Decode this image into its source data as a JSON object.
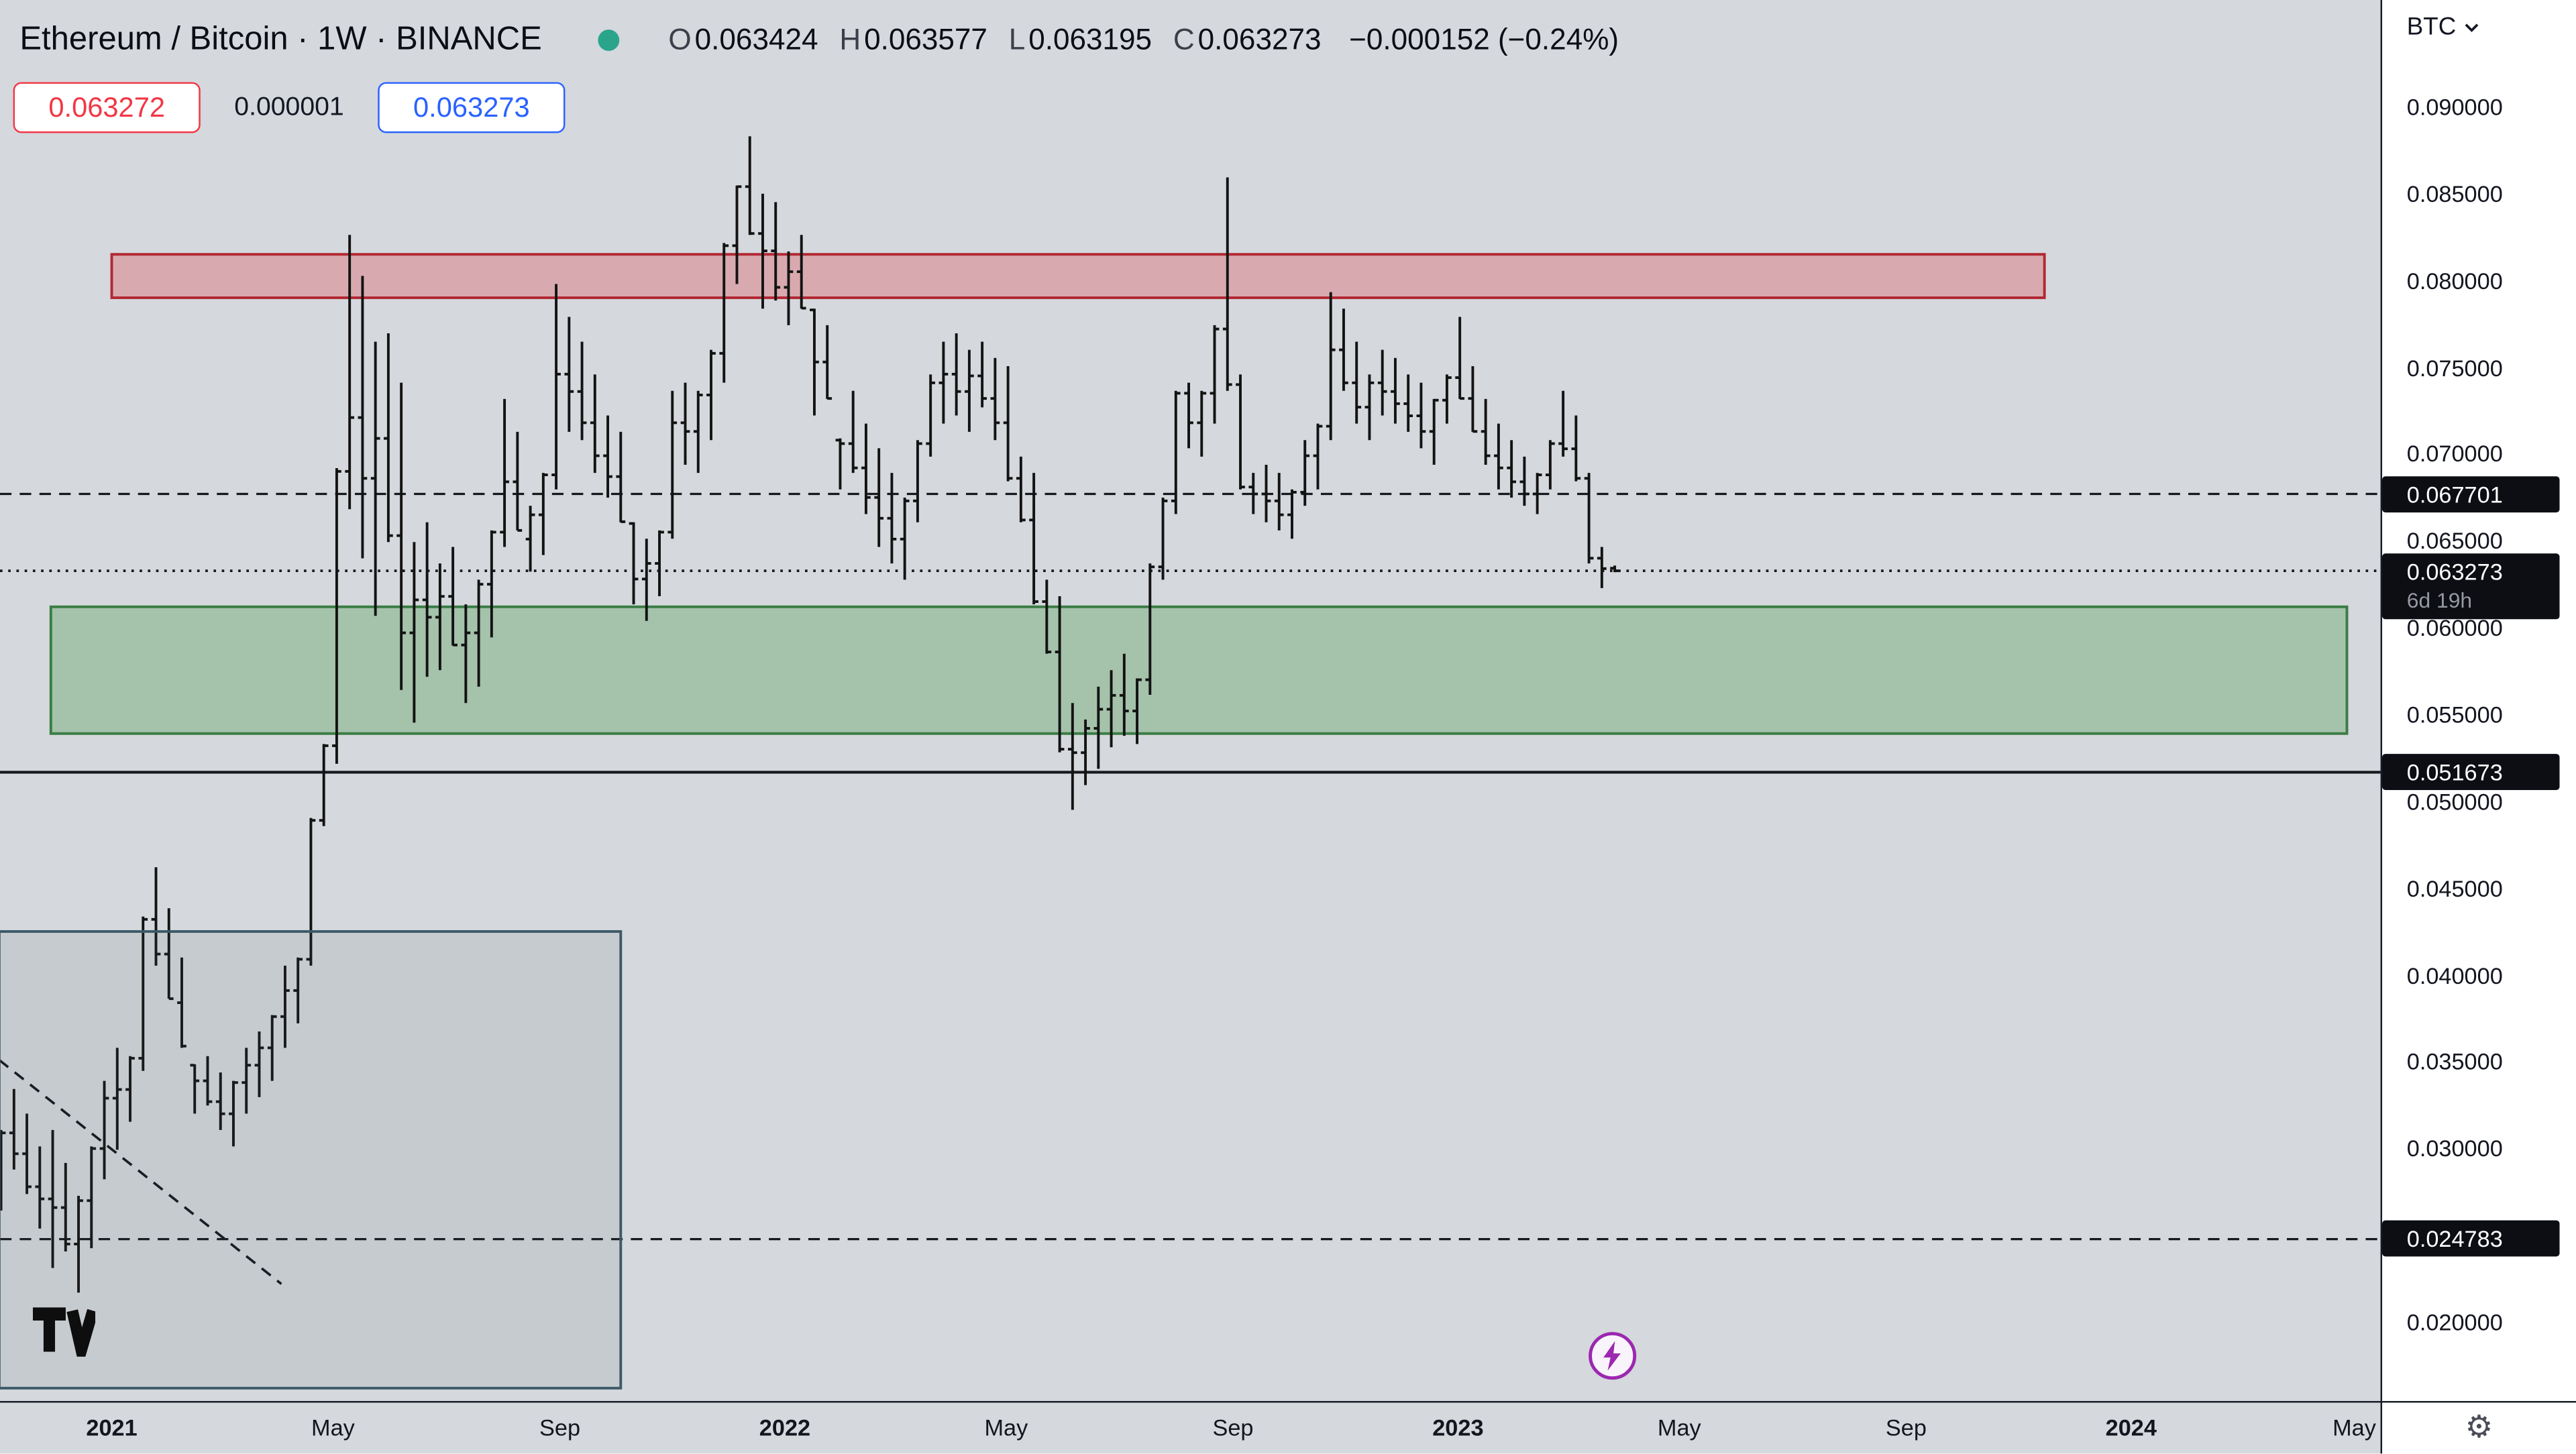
{
  "header": {
    "symbol_title": "Ethereum / Bitcoin · 1W · BINANCE",
    "ohlc": {
      "o_label": "O",
      "o": "0.063424",
      "h_label": "H",
      "h": "0.063577",
      "l_label": "L",
      "l": "0.063195",
      "c_label": "C",
      "c": "0.063273",
      "change": "−0.000152 (−0.24%)"
    },
    "bid": "0.063272",
    "spread": "0.000001",
    "ask": "0.063273"
  },
  "axis_right": {
    "currency_label": "BTC",
    "tick_prices": [
      0.09,
      0.085,
      0.08,
      0.075,
      0.07,
      0.065,
      0.06,
      0.055,
      0.05,
      0.045,
      0.04,
      0.035,
      0.03,
      0.02
    ],
    "badges": [
      {
        "price": 0.067701
      },
      {
        "price": 0.063273,
        "countdown": "6d 19h"
      },
      {
        "price": 0.051673
      },
      {
        "price": 0.024783
      }
    ]
  },
  "time_axis": {
    "ticks": [
      {
        "label": "2021",
        "date": "2021-01-01",
        "major": true
      },
      {
        "label": "May",
        "date": "2021-05-01",
        "major": false
      },
      {
        "label": "Sep",
        "date": "2021-09-01",
        "major": false
      },
      {
        "label": "2022",
        "date": "2022-01-01",
        "major": true
      },
      {
        "label": "May",
        "date": "2022-05-01",
        "major": false
      },
      {
        "label": "Sep",
        "date": "2022-09-01",
        "major": false
      },
      {
        "label": "2023",
        "date": "2023-01-01",
        "major": true
      },
      {
        "label": "May",
        "date": "2023-05-01",
        "major": false
      },
      {
        "label": "Sep",
        "date": "2023-09-01",
        "major": false
      },
      {
        "label": "2024",
        "date": "2024-01-01",
        "major": true
      },
      {
        "label": "May",
        "date": "2024-05-01",
        "major": false
      }
    ]
  },
  "footer": {
    "logo_icon": "tradingview-logo",
    "boost_icon": "lightning-boost-icon",
    "settings_icon": "gear-icon",
    "gear_glyph": "⚙"
  },
  "colors": {
    "bid_red": "#f23645",
    "ask_blue": "#2962ff",
    "boost_purple": "#9c27b0",
    "status_dot_green": "#2aa58b",
    "badge_bg": "#0c0e14",
    "chart_bg": "#d5d8dc"
  },
  "chart_data": {
    "type": "ohlc_bar",
    "title": "Ethereum / Bitcoin weekly OHLC bars, BINANCE",
    "symbol": "ETH/BTC",
    "interval": "1W",
    "exchange": "BINANCE",
    "last_price": 0.063273,
    "countdown": "6d 19h",
    "ylim": [
      0.0155,
      0.0962
    ],
    "grid": false,
    "bar_color": "#131313",
    "start_date": "2020-11-02",
    "bar_interval_days": 7,
    "bars": [
      [
        0.02875,
        0.03107,
        0.02643,
        0.0309
      ],
      [
        0.0309,
        0.03343,
        0.02879,
        0.0297
      ],
      [
        0.0297,
        0.03201,
        0.02738,
        0.0278
      ],
      [
        0.0278,
        0.03012,
        0.02539,
        0.0271
      ],
      [
        0.0271,
        0.03107,
        0.02312,
        0.0266
      ],
      [
        0.0266,
        0.02917,
        0.02407,
        0.0245
      ],
      [
        0.0245,
        0.02728,
        0.0217,
        0.027
      ],
      [
        0.027,
        0.03012,
        0.02426,
        0.03
      ],
      [
        0.03,
        0.0339,
        0.02823,
        0.0329
      ],
      [
        0.0329,
        0.0358,
        0.02993,
        0.0334
      ],
      [
        0.0334,
        0.03532,
        0.03154,
        0.0352
      ],
      [
        0.0352,
        0.04336,
        0.03447,
        0.0432
      ],
      [
        0.0432,
        0.0462,
        0.04053,
        0.0412
      ],
      [
        0.0412,
        0.04384,
        0.03863,
        0.0384
      ],
      [
        0.0384,
        0.041,
        0.0358,
        0.0359
      ],
      [
        0.0348,
        0.03485,
        0.03201,
        0.0339
      ],
      [
        0.0339,
        0.03532,
        0.03248,
        0.0327
      ],
      [
        0.0327,
        0.03438,
        0.03107,
        0.032
      ],
      [
        0.032,
        0.0339,
        0.03012,
        0.0338
      ],
      [
        0.0338,
        0.0358,
        0.03201,
        0.0348
      ],
      [
        0.0348,
        0.03674,
        0.03296,
        0.0358
      ],
      [
        0.0358,
        0.03769,
        0.0339,
        0.0376
      ],
      [
        0.0376,
        0.04053,
        0.0358,
        0.0391
      ],
      [
        0.0391,
        0.041,
        0.03721,
        0.0409
      ],
      [
        0.0409,
        0.04904,
        0.04053,
        0.0489
      ],
      [
        0.0489,
        0.0533,
        0.04857,
        0.0532
      ],
      [
        0.0532,
        0.06919,
        0.05216,
        0.069
      ],
      [
        0.069,
        0.08262,
        0.06682,
        0.0721
      ],
      [
        0.0721,
        0.08026,
        0.06399,
        0.0686
      ],
      [
        0.0686,
        0.07647,
        0.06068,
        0.0709
      ],
      [
        0.0709,
        0.07695,
        0.06493,
        0.0653
      ],
      [
        0.0653,
        0.07411,
        0.05641,
        0.0597
      ],
      [
        0.0597,
        0.06493,
        0.05453,
        0.0616
      ],
      [
        0.0616,
        0.06607,
        0.05717,
        0.0606
      ],
      [
        0.0606,
        0.0637,
        0.05755,
        0.0618
      ],
      [
        0.0618,
        0.06465,
        0.05897,
        0.059
      ],
      [
        0.059,
        0.06134,
        0.05566,
        0.0597
      ],
      [
        0.0597,
        0.06276,
        0.0566,
        0.0625
      ],
      [
        0.0625,
        0.0656,
        0.05944,
        0.0655
      ],
      [
        0.0655,
        0.07317,
        0.06465,
        0.0684
      ],
      [
        0.0684,
        0.07128,
        0.0656,
        0.0651
      ],
      [
        0.0651,
        0.06702,
        0.06323,
        0.0665
      ],
      [
        0.0665,
        0.06891,
        0.06418,
        0.0688
      ],
      [
        0.0688,
        0.07979,
        0.06796,
        0.0746
      ],
      [
        0.0746,
        0.0779,
        0.07128,
        0.0736
      ],
      [
        0.0736,
        0.07647,
        0.0708,
        0.0718
      ],
      [
        0.0718,
        0.07458,
        0.06891,
        0.0699
      ],
      [
        0.0699,
        0.07222,
        0.06749,
        0.0687
      ],
      [
        0.0687,
        0.07128,
        0.06607,
        0.0661
      ],
      [
        0.066,
        0.06607,
        0.06134,
        0.0628
      ],
      [
        0.0628,
        0.06512,
        0.06039,
        0.0637
      ],
      [
        0.0637,
        0.0656,
        0.06181,
        0.0655
      ],
      [
        0.0655,
        0.07364,
        0.06512,
        0.0718
      ],
      [
        0.0718,
        0.07411,
        0.06938,
        0.0713
      ],
      [
        0.0713,
        0.07364,
        0.06891,
        0.0734
      ],
      [
        0.0734,
        0.076,
        0.0708,
        0.0758
      ],
      [
        0.0758,
        0.08215,
        0.07411,
        0.082
      ],
      [
        0.082,
        0.08546,
        0.07979,
        0.0854
      ],
      [
        0.0854,
        0.0883,
        0.08262,
        0.0827
      ],
      [
        0.0827,
        0.08499,
        0.07837,
        0.0817
      ],
      [
        0.0817,
        0.08451,
        0.07884,
        0.0796
      ],
      [
        0.0796,
        0.08167,
        0.07742,
        0.0805
      ],
      [
        0.0805,
        0.08262,
        0.07837,
        0.0784
      ],
      [
        0.0783,
        0.07837,
        0.07222,
        0.0753
      ],
      [
        0.0753,
        0.07742,
        0.07317,
        0.0732
      ],
      [
        0.0708,
        0.0709,
        0.06796,
        0.0706
      ],
      [
        0.0706,
        0.07364,
        0.06891,
        0.0692
      ],
      [
        0.0692,
        0.07175,
        0.06654,
        0.0675
      ],
      [
        0.0675,
        0.07033,
        0.06465,
        0.0663
      ],
      [
        0.0663,
        0.06891,
        0.0637,
        0.0651
      ],
      [
        0.0651,
        0.06749,
        0.06276,
        0.0673
      ],
      [
        0.0673,
        0.0708,
        0.06607,
        0.0706
      ],
      [
        0.0706,
        0.07458,
        0.06985,
        0.0741
      ],
      [
        0.0741,
        0.07647,
        0.07175,
        0.0746
      ],
      [
        0.0746,
        0.07695,
        0.07222,
        0.0736
      ],
      [
        0.0736,
        0.076,
        0.07128,
        0.0745
      ],
      [
        0.0745,
        0.07647,
        0.07269,
        0.0732
      ],
      [
        0.0732,
        0.07553,
        0.0708,
        0.0718
      ],
      [
        0.0718,
        0.07506,
        0.06843,
        0.0686
      ],
      [
        0.0686,
        0.06985,
        0.06607,
        0.0662
      ],
      [
        0.0662,
        0.06891,
        0.06134,
        0.0615
      ],
      [
        0.0615,
        0.06276,
        0.0585,
        0.0586
      ],
      [
        0.0586,
        0.06181,
        0.05282,
        0.053
      ],
      [
        0.053,
        0.05566,
        0.04951,
        0.0528
      ],
      [
        0.0528,
        0.05471,
        0.05093,
        0.0542
      ],
      [
        0.0542,
        0.0566,
        0.05187,
        0.0553
      ],
      [
        0.0553,
        0.05755,
        0.05311,
        0.0561
      ],
      [
        0.0561,
        0.0585,
        0.05377,
        0.0552
      ],
      [
        0.0552,
        0.05708,
        0.0533,
        0.057
      ],
      [
        0.057,
        0.0637,
        0.05613,
        0.0635
      ],
      [
        0.0635,
        0.06749,
        0.06276,
        0.0673
      ],
      [
        0.0673,
        0.07364,
        0.06654,
        0.0735
      ],
      [
        0.0735,
        0.07411,
        0.07033,
        0.0718
      ],
      [
        0.0718,
        0.07364,
        0.06985,
        0.0735
      ],
      [
        0.0735,
        0.07742,
        0.07175,
        0.0772
      ],
      [
        0.0772,
        0.08593,
        0.07364,
        0.074
      ],
      [
        0.074,
        0.07458,
        0.06796,
        0.0681
      ],
      [
        0.0681,
        0.06891,
        0.06654,
        0.0677
      ],
      [
        0.0677,
        0.06938,
        0.06607,
        0.0673
      ],
      [
        0.0673,
        0.06891,
        0.0656,
        0.0665
      ],
      [
        0.0665,
        0.06796,
        0.06512,
        0.0678
      ],
      [
        0.0678,
        0.0708,
        0.06702,
        0.0699
      ],
      [
        0.0699,
        0.07175,
        0.06796,
        0.0716
      ],
      [
        0.0716,
        0.07932,
        0.0708,
        0.076
      ],
      [
        0.076,
        0.07837,
        0.07364,
        0.0741
      ],
      [
        0.0741,
        0.07647,
        0.07175,
        0.0727
      ],
      [
        0.0727,
        0.07458,
        0.0708,
        0.0741
      ],
      [
        0.0741,
        0.076,
        0.07222,
        0.0736
      ],
      [
        0.0736,
        0.07553,
        0.07175,
        0.0729
      ],
      [
        0.0729,
        0.07458,
        0.07128,
        0.0722
      ],
      [
        0.0722,
        0.07411,
        0.07033,
        0.0713
      ],
      [
        0.0713,
        0.07317,
        0.06938,
        0.0731
      ],
      [
        0.0731,
        0.07458,
        0.07175,
        0.0744
      ],
      [
        0.0744,
        0.0779,
        0.07317,
        0.0732
      ],
      [
        0.0732,
        0.07506,
        0.07128,
        0.0713
      ],
      [
        0.0713,
        0.07317,
        0.06938,
        0.0699
      ],
      [
        0.0699,
        0.07175,
        0.06796,
        0.0692
      ],
      [
        0.0692,
        0.0708,
        0.06749,
        0.0684
      ],
      [
        0.0684,
        0.06985,
        0.06702,
        0.0677
      ],
      [
        0.0677,
        0.06891,
        0.06654,
        0.0688
      ],
      [
        0.0688,
        0.0708,
        0.06796,
        0.0706
      ],
      [
        0.0706,
        0.07364,
        0.06985,
        0.0703
      ],
      [
        0.0703,
        0.07222,
        0.06843,
        0.0686
      ],
      [
        0.0686,
        0.06891,
        0.0637,
        0.064
      ],
      [
        0.064,
        0.06465,
        0.06228,
        0.0634
      ],
      [
        0.063424,
        0.063577,
        0.063195,
        0.063273
      ]
    ],
    "levels": [
      {
        "price": 0.067701,
        "style": "dashed",
        "color": "#16181d"
      },
      {
        "price": 0.063273,
        "style": "dotted",
        "color": "#16181d",
        "role": "last-price"
      },
      {
        "price": 0.051673,
        "style": "solid",
        "color": "#16181d"
      },
      {
        "price": 0.024783,
        "style": "dashed",
        "color": "#16181d"
      }
    ],
    "zones": [
      {
        "name": "supply-zone",
        "price_top": 0.0815,
        "price_bottom": 0.079,
        "date_start": "2021-01-01",
        "date_end": "2023-11-15",
        "fill": "rgba(225,50,62,0.28)",
        "border": "#b22833"
      },
      {
        "name": "demand-zone",
        "price_top": 0.0612,
        "price_bottom": 0.0539,
        "date_start": "2020-11-29",
        "date_end": "2024-04-27",
        "fill": "rgba(56,142,60,0.30)",
        "border": "#3a7d44"
      }
    ],
    "box": {
      "name": "accumulation-box",
      "date_start": "2020-11-01",
      "date_end": "2021-10-04",
      "price_top": 0.0425,
      "price_bottom": 0.0162,
      "fill": "rgba(69,90,100,0.10)",
      "border": "#3c5a68"
    },
    "trendline": {
      "style": "dashed",
      "color": "#16181d",
      "points": [
        {
          "date": "2020-11-01",
          "price": 0.0351
        },
        {
          "date": "2021-04-03",
          "price": 0.0222
        }
      ]
    }
  }
}
